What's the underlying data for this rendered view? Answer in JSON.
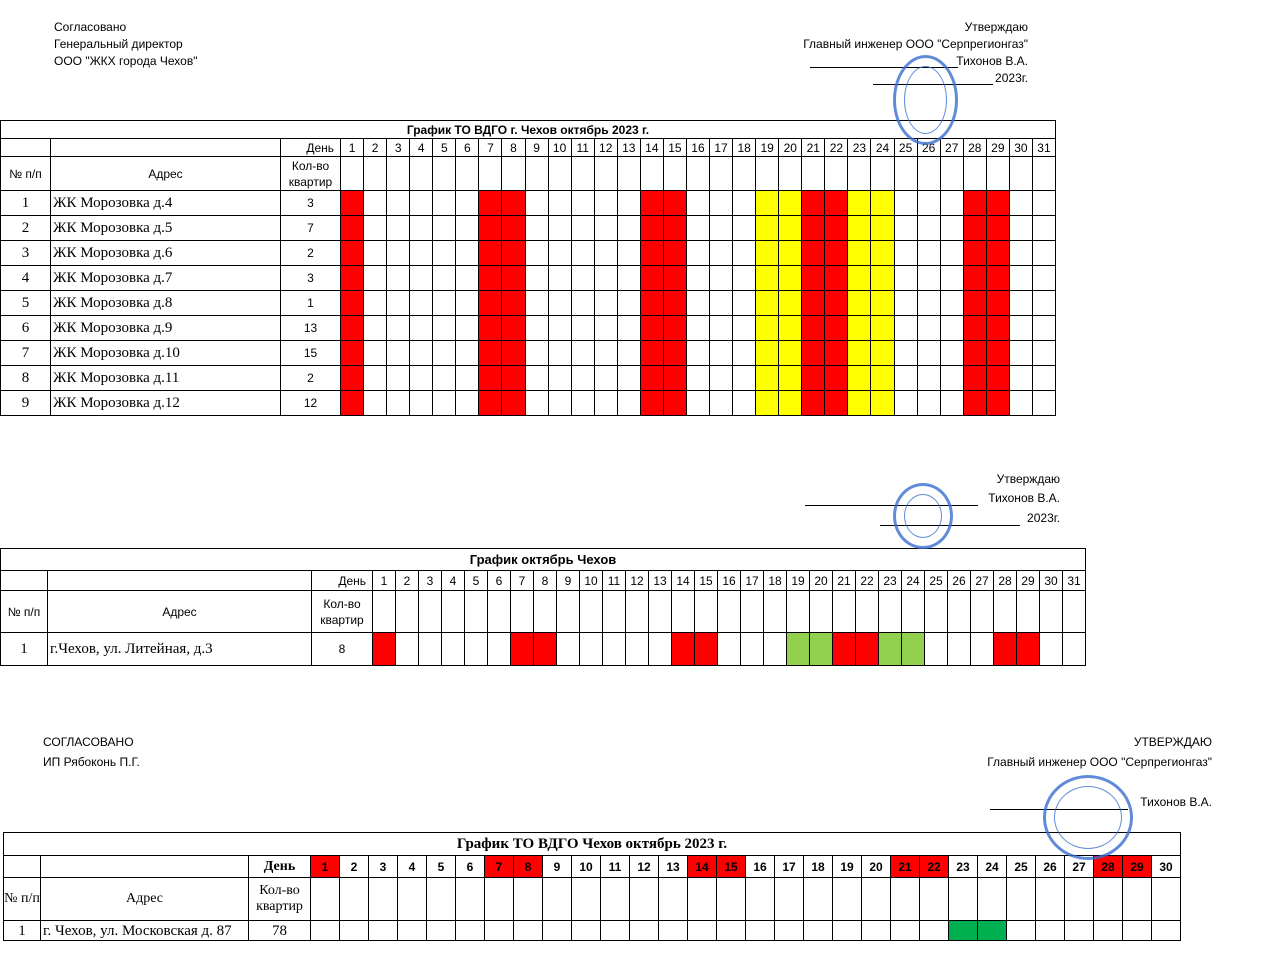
{
  "sections": [
    {
      "left": [
        "Согласовано",
        "Генеральный директор",
        "ООО \"ЖКХ города Чехов\""
      ],
      "right": [
        "Утверждаю",
        "Главный инженер ООО \"Серпрегионгаз\"",
        "Тихонов В.А.",
        "2023г."
      ],
      "table": {
        "title": "График ТО ВДГО г. Чехов      октябрь 2023 г.",
        "day_label": "День",
        "days": [
          1,
          2,
          3,
          4,
          5,
          6,
          7,
          8,
          9,
          10,
          11,
          12,
          13,
          14,
          15,
          16,
          17,
          18,
          19,
          20,
          21,
          22,
          23,
          24,
          25,
          26,
          27,
          28,
          29,
          30,
          31
        ],
        "columns": [
          "№ п/п",
          "Адрес",
          "Кол-во квартир"
        ],
        "rows": [
          [
            1,
            "ЖК Морозовка д.4",
            3
          ],
          [
            2,
            "ЖК Морозовка д.5",
            7
          ],
          [
            3,
            "ЖК Морозовка д.6",
            2
          ],
          [
            4,
            "ЖК Морозовка д.7",
            3
          ],
          [
            5,
            "ЖК Морозовка д.8",
            1
          ],
          [
            6,
            "ЖК Морозовка д.9",
            13
          ],
          [
            7,
            "ЖК Морозовка д.10",
            15
          ],
          [
            8,
            "ЖК Морозовка д.11",
            2
          ],
          [
            9,
            "ЖК Морозовка д.12",
            12
          ]
        ],
        "highlights": [
          {
            "color": "#ff0000",
            "days": [
              1,
              7,
              8,
              14,
              15,
              21,
              22,
              28,
              29
            ]
          },
          {
            "color": "#ffff00",
            "days": [
              19,
              20,
              23,
              24
            ]
          }
        ]
      }
    },
    {
      "left": [],
      "right": [
        "Утверждаю",
        "Тихонов В.А.",
        "2023г."
      ],
      "table": {
        "title": "График октябрь Чехов",
        "day_label": "День",
        "days": [
          1,
          2,
          3,
          4,
          5,
          6,
          7,
          8,
          9,
          10,
          11,
          12,
          13,
          14,
          15,
          16,
          17,
          18,
          19,
          20,
          21,
          22,
          23,
          24,
          25,
          26,
          27,
          28,
          29,
          30,
          31
        ],
        "columns": [
          "№ п/п",
          "Адрес",
          "Кол-во квартир"
        ],
        "rows": [
          [
            1,
            "г.Чехов, ул. Литейная, д.3",
            8
          ]
        ],
        "highlights": [
          {
            "color": "#ff0000",
            "days": [
              1,
              7,
              8,
              14,
              15,
              21,
              22,
              28,
              29
            ]
          },
          {
            "color": "#92d050",
            "days": [
              19,
              20,
              23,
              24
            ]
          }
        ]
      }
    },
    {
      "left": [
        "СОГЛАСОВАНО",
        "ИП Рябоконь П.Г."
      ],
      "right": [
        "УТВЕРЖДАЮ",
        "Главный инженер ООО \"Серпрегионгаз\"",
        "Тихонов В.А."
      ],
      "table": {
        "title": "График  ТО ВДГО  Чехов октябрь 2023 г.",
        "day_label": "День",
        "days": [
          1,
          2,
          3,
          4,
          5,
          6,
          7,
          8,
          9,
          10,
          11,
          12,
          13,
          14,
          15,
          16,
          17,
          18,
          19,
          20,
          21,
          22,
          23,
          24,
          25,
          26,
          27,
          28,
          29,
          30
        ],
        "columns": [
          "№ п/п",
          "Адрес",
          "Кол-во квартир"
        ],
        "rows": [
          [
            1,
            "г. Чехов, ул. Московская д. 87",
            78
          ]
        ],
        "header_highlights": [
          {
            "color": "#ff0000",
            "days": [
              1,
              7,
              8,
              14,
              15,
              21,
              22,
              28,
              29
            ]
          }
        ],
        "highlights": [
          {
            "color": "#00b050",
            "days": [
              23,
              24
            ]
          }
        ]
      }
    }
  ]
}
